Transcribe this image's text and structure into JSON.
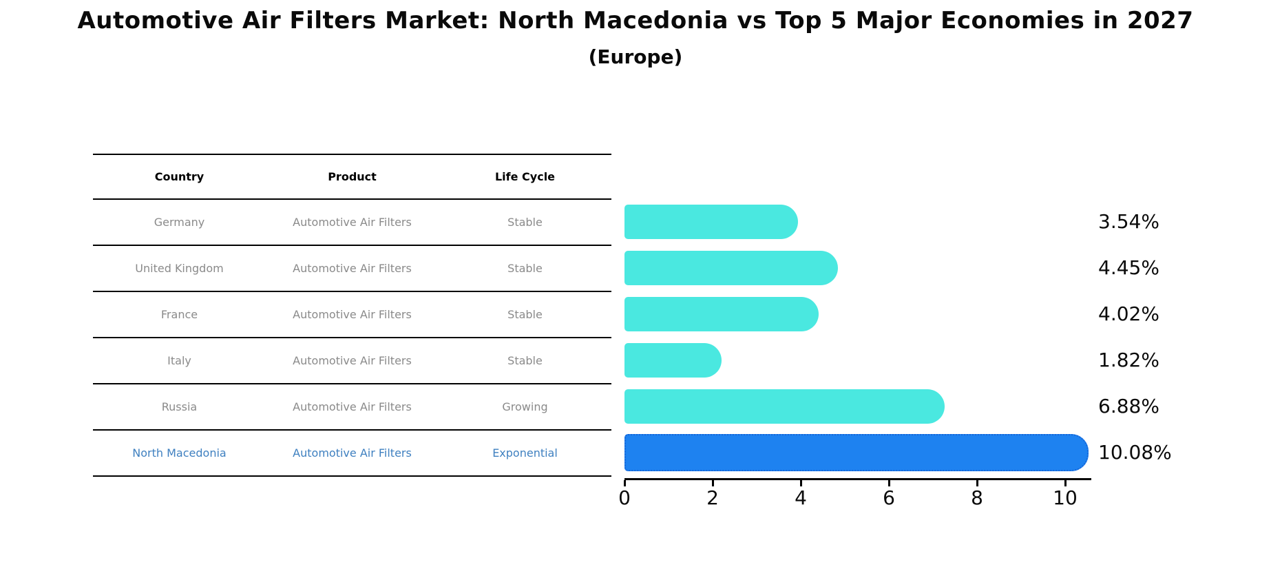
{
  "title": "Automotive Air Filters Market: North Macedonia vs Top 5 Major Economies in 2027",
  "subtitle": "(Europe)",
  "table": {
    "headers": [
      "Country",
      "Product",
      "Life Cycle"
    ],
    "rows": [
      {
        "country": "Germany",
        "product": "Automotive Air Filters",
        "life_cycle": "Stable",
        "value_label": "3.54%",
        "highlight": false
      },
      {
        "country": "United Kingdom",
        "product": "Automotive Air Filters",
        "life_cycle": "Stable",
        "value_label": "4.45%",
        "highlight": false
      },
      {
        "country": "France",
        "product": "Automotive Air Filters",
        "life_cycle": "Stable",
        "value_label": "4.02%",
        "highlight": false
      },
      {
        "country": "Italy",
        "product": "Automotive Air Filters",
        "life_cycle": "Stable",
        "value_label": "1.82%",
        "highlight": false
      },
      {
        "country": "Russia",
        "product": "Automotive Air Filters",
        "life_cycle": "Growing",
        "value_label": "6.88%",
        "highlight": false
      },
      {
        "country": "North Macedonia",
        "product": "Automotive Air Filters",
        "life_cycle": "Exponential",
        "value_label": "10.08%",
        "highlight": true
      }
    ]
  },
  "chart_data": {
    "type": "bar",
    "orientation": "horizontal",
    "title": "Automotive Air Filters Market: North Macedonia vs Top 5 Major Economies in 2027 (Europe)",
    "categories": [
      "Germany",
      "United Kingdom",
      "France",
      "Italy",
      "Russia",
      "North Macedonia"
    ],
    "values": [
      3.54,
      4.45,
      4.02,
      1.82,
      6.88,
      10.08
    ],
    "data_labels": [
      "3.54%",
      "4.45%",
      "4.02%",
      "1.82%",
      "6.88%",
      "10.08%"
    ],
    "xlabel": "",
    "ylabel": "",
    "xlim": [
      0,
      10.6
    ],
    "x_ticks": [
      0,
      2,
      4,
      6,
      8,
      10
    ],
    "grid": false,
    "legend": false,
    "highlight_index": 5
  },
  "colors": {
    "bar_default": "#4ae8e0",
    "bar_highlight": "#1e82f0",
    "bar_highlight_border": "#1565d8",
    "highlight_text": "#3f80c0",
    "row_text": "#8a8a8a",
    "header_text": "#000000",
    "axis": "#000000"
  }
}
